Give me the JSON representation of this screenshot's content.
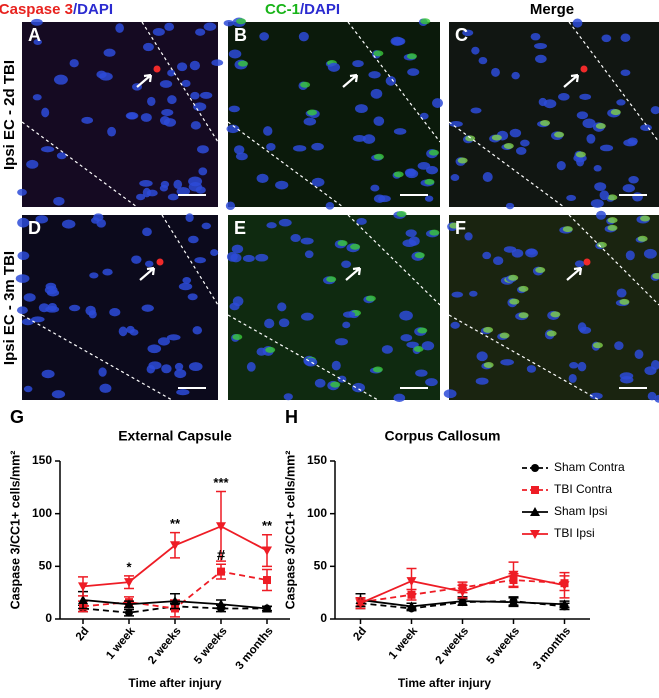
{
  "figure": {
    "headers": [
      "Caspase 3",
      "/DAPI",
      "CC-1",
      "/DAPI",
      "Merge"
    ],
    "row_labels": [
      "Ipsi EC - 2d TBI",
      "Ipsi EC - 3m TBI"
    ],
    "panel_letters": [
      "A",
      "B",
      "C",
      "D",
      "E",
      "F"
    ]
  },
  "chart_data": [
    {
      "type": "line",
      "panel": "G",
      "title": "External Capsule",
      "y_label": "Caspase 3/CC1+ cells/mm²",
      "x_label": "Time after injury",
      "categories": [
        "2d",
        "1 week",
        "2 weeks",
        "5 weeks",
        "3 months"
      ],
      "ylim": [
        0,
        150
      ],
      "yticks": [
        0,
        50,
        100,
        150
      ],
      "legend": null,
      "series": [
        {
          "name": "Sham Contra",
          "color": "#000000",
          "marker": "circle",
          "line_style": "dashed",
          "values": [
            10,
            6,
            12,
            10,
            10
          ],
          "errors": [
            3,
            3,
            3,
            3,
            2
          ]
        },
        {
          "name": "TBI Contra",
          "color": "#ee1c25",
          "marker": "square",
          "line_style": "dashed",
          "values": [
            12,
            16,
            10,
            45,
            37
          ],
          "errors": [
            5,
            5,
            8,
            7,
            10
          ]
        },
        {
          "name": "Sham Ipsi",
          "color": "#000000",
          "marker": "triangle",
          "line_style": "solid",
          "values": [
            18,
            14,
            17,
            14,
            10
          ],
          "errors": [
            8,
            3,
            7,
            4,
            2
          ]
        },
        {
          "name": "TBI Ipsi",
          "color": "#ee1c25",
          "marker": "triangle-down",
          "line_style": "solid",
          "values": [
            31,
            35,
            70,
            88,
            65
          ],
          "errors": [
            9,
            6,
            12,
            33,
            15
          ]
        }
      ],
      "annotations": [
        {
          "text": "*",
          "category": "1 week",
          "series": "TBI Ipsi"
        },
        {
          "text": "**",
          "category": "2 weeks",
          "series": "TBI Ipsi"
        },
        {
          "text": "***",
          "category": "5 weeks",
          "series": "TBI Ipsi"
        },
        {
          "text": "**",
          "category": "3 months",
          "series": "TBI Ipsi"
        },
        {
          "text": "#",
          "category": "5 weeks",
          "series": "TBI Contra"
        }
      ]
    },
    {
      "type": "line",
      "panel": "H",
      "title": "Corpus Callosum",
      "y_label": "Caspase 3/CC1+ cells/mm²",
      "x_label": "Time after injury",
      "categories": [
        "2d",
        "1 week",
        "2 weeks",
        "5 weeks",
        "3 months"
      ],
      "ylim": [
        0,
        150
      ],
      "yticks": [
        0,
        50,
        100,
        150
      ],
      "legend": "right",
      "series": [
        {
          "name": "Sham Contra",
          "color": "#000000",
          "marker": "circle",
          "line_style": "dashed",
          "values": [
            15,
            10,
            16,
            17,
            12
          ],
          "errors": [
            5,
            2,
            3,
            4,
            3
          ]
        },
        {
          "name": "TBI Contra",
          "color": "#ee1c25",
          "marker": "square",
          "line_style": "dashed",
          "values": [
            16,
            23,
            30,
            37,
            34
          ],
          "errors": [
            4,
            5,
            5,
            6,
            7
          ]
        },
        {
          "name": "Sham Ipsi",
          "color": "#000000",
          "marker": "triangle",
          "line_style": "solid",
          "values": [
            18,
            12,
            17,
            16,
            14
          ],
          "errors": [
            6,
            3,
            4,
            4,
            3
          ]
        },
        {
          "name": "TBI Ipsi",
          "color": "#ee1c25",
          "marker": "triangle-down",
          "line_style": "solid",
          "values": [
            15,
            36,
            26,
            42,
            32
          ],
          "errors": [
            5,
            12,
            6,
            12,
            12
          ]
        }
      ],
      "annotations": []
    }
  ]
}
